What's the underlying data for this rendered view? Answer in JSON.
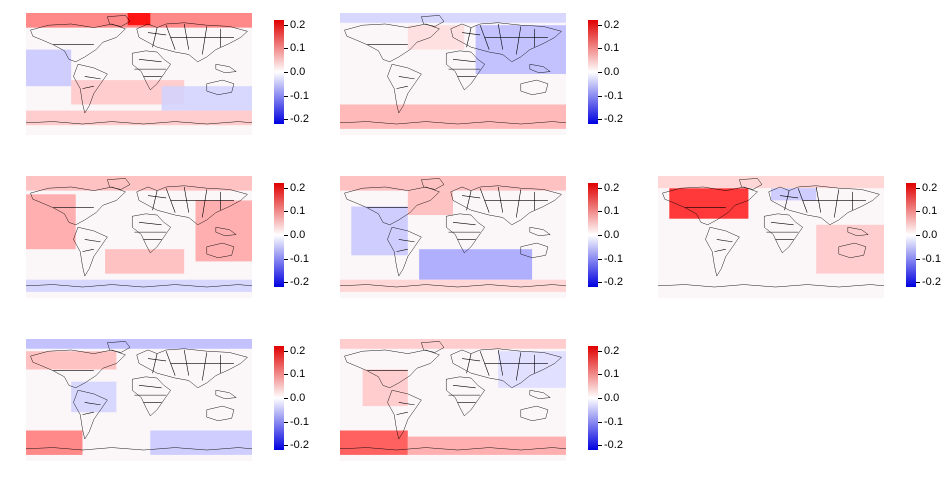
{
  "colorbar": {
    "ticks": [
      "0.2",
      "0.1",
      "0.0",
      "-0.1",
      "-0.2"
    ],
    "tick_values": [
      0.2,
      0.1,
      0.0,
      -0.1,
      -0.2
    ],
    "range": [
      -0.22,
      0.22
    ],
    "colors": {
      "high": "#e00000",
      "mid": "#ffffff",
      "low": "#0000e0"
    }
  },
  "panels": [
    {
      "id": "row1-col1",
      "row": 1,
      "col": 1,
      "pattern": "warm-north-cool-band"
    },
    {
      "id": "row1-col2",
      "row": 1,
      "col": 2,
      "pattern": "cool-east-warm-south"
    },
    {
      "id": "row2-col1",
      "row": 2,
      "col": 1,
      "pattern": "warm-pacific"
    },
    {
      "id": "row2-col2",
      "row": 2,
      "col": 2,
      "pattern": "cool-south-atlantic"
    },
    {
      "id": "row2-col3",
      "row": 2,
      "col": 3,
      "pattern": "hot-north-america"
    },
    {
      "id": "row3-col1",
      "row": 3,
      "col": 1,
      "pattern": "cool-arctic-warm-south"
    },
    {
      "id": "row3-col2",
      "row": 3,
      "col": 2,
      "pattern": "warm-south-ocean"
    }
  ]
}
